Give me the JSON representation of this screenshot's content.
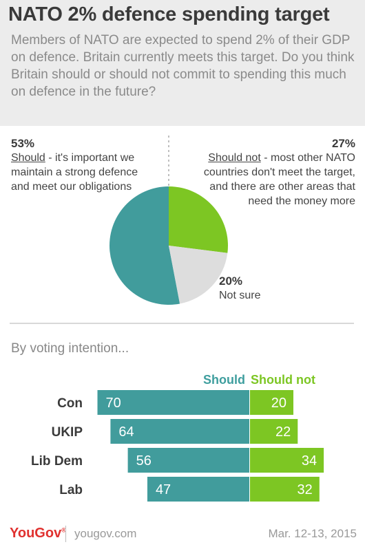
{
  "header": {
    "title": "NATO 2% defence spending target",
    "question": "Members of NATO are expected to spend 2% of their GDP on defence. Britain currently meets this target. Do you think Britain should or should not commit to spending this much on defence in the future?"
  },
  "pie": {
    "should": {
      "pct": "53%",
      "keyword": "Should",
      "rest": " - it's important we maintain a strong defence and meet our obligations"
    },
    "should_not": {
      "pct": "27%",
      "keyword": "Should not",
      "rest": " - most other NATO countries don't meet the target, and there are other areas that need the money more"
    },
    "not_sure": {
      "pct": "20%",
      "label": "Not sure"
    }
  },
  "subhead": "By voting intention...",
  "legend": {
    "should": "Should",
    "should_not": "Should not"
  },
  "footer": {
    "brand": "YouGov",
    "site": "yougov.com",
    "date": "Mar. 12-13, 2015"
  },
  "colors": {
    "should": "#419c9c",
    "should_not": "#7dc623",
    "not_sure": "#dddddd",
    "brand": "#e0312f"
  },
  "chart_data": [
    {
      "type": "pie",
      "title": "NATO 2% defence spending target",
      "categories": [
        "Should",
        "Should not",
        "Not sure"
      ],
      "values": [
        53,
        27,
        20
      ]
    },
    {
      "type": "bar",
      "title": "By voting intention...",
      "categories": [
        "Con",
        "UKIP",
        "Lib Dem",
        "Lab"
      ],
      "series": [
        {
          "name": "Should",
          "values": [
            70,
            64,
            56,
            47
          ]
        },
        {
          "name": "Should not",
          "values": [
            20,
            22,
            34,
            32
          ]
        }
      ]
    }
  ]
}
